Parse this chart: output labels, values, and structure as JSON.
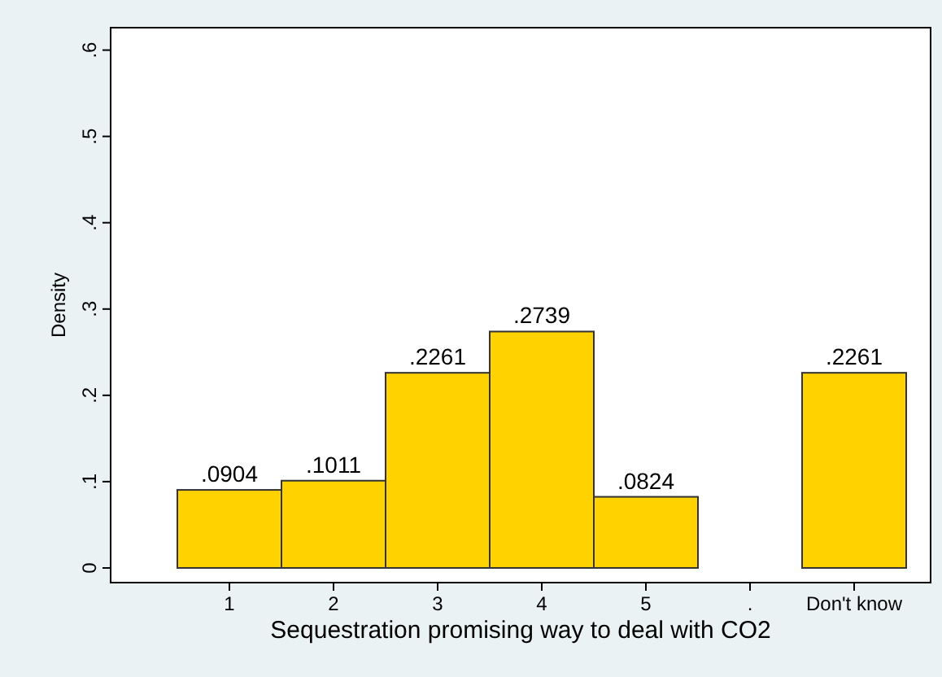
{
  "chart_data": {
    "type": "bar",
    "xlabel": "Sequestration promising way to deal with CO2",
    "ylabel": "Density",
    "categories": [
      "1",
      "2",
      "3",
      "4",
      "5",
      ".",
      "Don't know"
    ],
    "values": [
      0.0904,
      0.1011,
      0.2261,
      0.2739,
      0.0824,
      null,
      0.2261
    ],
    "value_labels": [
      ".0904",
      ".1011",
      ".2261",
      ".2739",
      ".0824",
      null,
      ".2261"
    ],
    "color": "#ffd200",
    "ylim": [
      -0.017,
      0.626
    ],
    "yticks": [
      0,
      {
        "value": 0.1,
        "label": ".1"
      },
      {
        "value": 0.2,
        "label": ".2"
      },
      {
        "value": 0.3,
        "label": ".3"
      },
      {
        "value": 0.4,
        "label": ".4"
      },
      {
        "value": 0.5,
        "label": ".5"
      },
      {
        "value": 0.6,
        "label": ".6"
      }
    ],
    "grid": false
  }
}
